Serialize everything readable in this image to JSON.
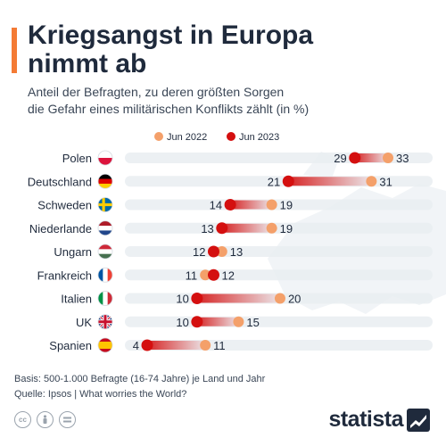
{
  "header": {
    "title": "Kriegsangst in Europa\nnimmt ab",
    "subtitle": "Anteil der Befragten, zu deren größten Sorgen\ndie Gefahr eines militärischen Konflikts zählt (in %)"
  },
  "colors": {
    "accent": "#f47b35",
    "series_2022": "#f4a06a",
    "series_2023": "#d40f0f",
    "text_dark": "#1f2a3c",
    "track": "#e9edf1"
  },
  "chart_data": {
    "type": "dumbbell",
    "categories": [
      "Polen",
      "Deutschland",
      "Schweden",
      "Niederlande",
      "Ungarn",
      "Frankreich",
      "Italien",
      "UK",
      "Spanien"
    ],
    "flag_icons": [
      "flag-poland-icon",
      "flag-germany-icon",
      "flag-sweden-icon",
      "flag-netherlands-icon",
      "flag-hungary-icon",
      "flag-france-icon",
      "flag-italy-icon",
      "flag-uk-icon",
      "flag-spain-icon"
    ],
    "series": [
      {
        "name": "Jun 2022",
        "values": [
          33,
          31,
          19,
          19,
          13,
          11,
          20,
          15,
          11
        ]
      },
      {
        "name": "Jun 2023",
        "values": [
          29,
          21,
          14,
          13,
          12,
          12,
          10,
          10,
          4
        ]
      }
    ],
    "xlim": [
      0,
      35
    ],
    "legend_position": "top"
  },
  "footer": {
    "basis": "Basis: 500-1.000 Befragte (16-74 Jahre) je Land und Jahr",
    "source": "Quelle: Ipsos | What worries the World?",
    "license_icons": [
      "cc-icon",
      "by-icon",
      "nd-icon"
    ],
    "brand": "statista"
  }
}
